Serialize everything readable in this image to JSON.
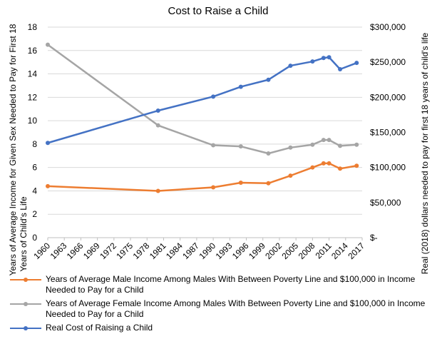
{
  "chart_data": {
    "type": "line",
    "title": "Cost to Raise a Child",
    "categories": [
      "1960",
      "1963",
      "1966",
      "1969",
      "1972",
      "1975",
      "1978",
      "1981",
      "1984",
      "1987",
      "1990",
      "1993",
      "1996",
      "1999",
      "2002",
      "2005",
      "2008",
      "2011",
      "2014",
      "2017"
    ],
    "ylabel_left": "Years of Average Income for Given Sex Needed to Pay for First 18 Years of Child's Life",
    "ylabel_right": "Real (2018) dollars needed to pay for first 18 years of child's life",
    "ylim_left": [
      0,
      18
    ],
    "yticks_left": [
      "0",
      "2",
      "4",
      "6",
      "8",
      "10",
      "12",
      "14",
      "16",
      "18"
    ],
    "ylim_right": [
      0,
      300000
    ],
    "yticks_right": [
      "$-",
      "$50,000",
      "$100,000",
      "$150,000",
      "$200,000",
      "$250,000",
      "$300,000"
    ],
    "grid": "horizontal",
    "series": [
      {
        "name": "Years of Average Male Income Among Males With Between Poverty Line and $100,000 in Income Needed to Pay for a Child",
        "axis": "left",
        "color": "#ED7D31",
        "x": [
          1960,
          1980,
          1990,
          1995,
          2000,
          2004,
          2008,
          2010,
          2011,
          2013,
          2016
        ],
        "values": [
          4.4,
          4.0,
          4.3,
          4.7,
          4.65,
          5.3,
          6.0,
          6.35,
          6.35,
          5.9,
          6.15
        ]
      },
      {
        "name": "Years of Average Female Income Among Males With Between Poverty Line and $100,000 in Income Needed to Pay for a Child",
        "axis": "left",
        "color": "#A5A5A5",
        "x": [
          1960,
          1980,
          1990,
          1995,
          2000,
          2004,
          2008,
          2010,
          2011,
          2013,
          2016
        ],
        "values": [
          16.5,
          9.6,
          7.9,
          7.8,
          7.2,
          7.7,
          7.95,
          8.35,
          8.35,
          7.85,
          7.95
        ]
      },
      {
        "name": "Real Cost of Raising a Child",
        "axis": "right",
        "color": "#4472C4",
        "x": [
          1960,
          1980,
          1990,
          1995,
          2000,
          2004,
          2008,
          2010,
          2011,
          2013,
          2016
        ],
        "values": [
          135000,
          181000,
          201000,
          215000,
          225000,
          245000,
          251000,
          256000,
          257000,
          240000,
          249000
        ]
      }
    ]
  }
}
